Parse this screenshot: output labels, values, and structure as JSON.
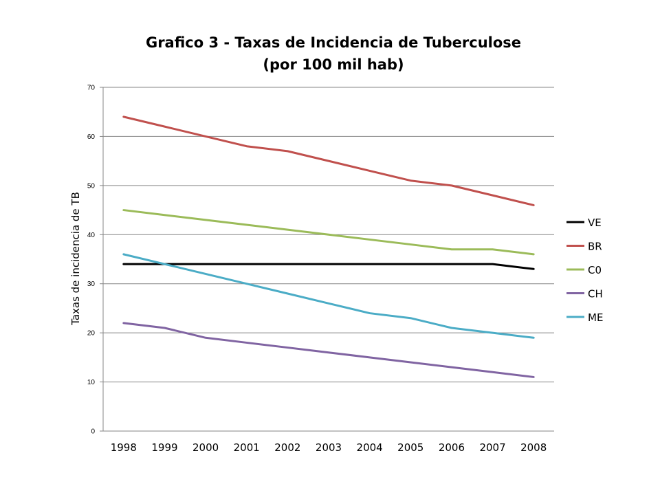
{
  "chart_data": {
    "type": "line",
    "title": "Grafico 3 - Taxas de Incidencia de Tuberculose",
    "subtitle": "(por 100 mil hab)",
    "xlabel": "",
    "ylabel": "Taxas de incidencia de TB",
    "categories": [
      "1998",
      "1999",
      "2000",
      "2001",
      "2002",
      "2003",
      "2004",
      "2005",
      "2006",
      "2007",
      "2008"
    ],
    "ylim": [
      0,
      70
    ],
    "yticks": [
      0,
      10,
      20,
      30,
      40,
      50,
      60,
      70
    ],
    "grid": true,
    "legend_position": "right",
    "series": [
      {
        "name": "VE",
        "color": "#000000",
        "values": [
          34,
          34,
          34,
          34,
          34,
          34,
          34,
          34,
          34,
          34,
          33
        ]
      },
      {
        "name": "BR",
        "color": "#c0504d",
        "values": [
          64,
          62,
          60,
          58,
          57,
          55,
          53,
          51,
          50,
          48,
          46
        ]
      },
      {
        "name": "C0",
        "color": "#9bbb59",
        "values": [
          45,
          44,
          43,
          42,
          41,
          40,
          39,
          38,
          37,
          37,
          36
        ]
      },
      {
        "name": "CH",
        "color": "#8064a2",
        "values": [
          22,
          21,
          19,
          18,
          17,
          16,
          15,
          14,
          13,
          12,
          11
        ]
      },
      {
        "name": "ME",
        "color": "#4bacc6",
        "values": [
          36,
          34,
          32,
          30,
          28,
          26,
          24,
          23,
          21,
          20,
          19
        ]
      }
    ]
  }
}
